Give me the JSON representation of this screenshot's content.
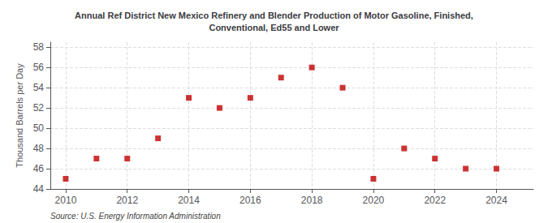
{
  "chart_data": {
    "type": "scatter",
    "title": "Annual Ref District New Mexico Refinery and Blender Production of Motor Gasoline, Finished,\nConventional, Ed55 and Lower",
    "ylabel": "Thousand Barrels per Day",
    "source": "Source: U.S. Energy Information Administration",
    "x": [
      2010,
      2011,
      2012,
      2013,
      2014,
      2015,
      2016,
      2017,
      2018,
      2019,
      2020,
      2021,
      2022,
      2023,
      2024
    ],
    "values": [
      45.0,
      47.0,
      47.0,
      49.0,
      53.0,
      52.0,
      53.0,
      55.0,
      56.0,
      54.0,
      45.0,
      48.0,
      47.0,
      46.0,
      46.0
    ],
    "color": "#c00000",
    "marker": "square",
    "xlim": [
      2009.5,
      2025.2
    ],
    "xticks": [
      2010,
      2012,
      2014,
      2016,
      2018,
      2020,
      2022,
      2024
    ],
    "ylim": [
      44,
      58.5
    ],
    "yticks": [
      44,
      46,
      48,
      50,
      52,
      54,
      56,
      58
    ],
    "grid": true
  }
}
